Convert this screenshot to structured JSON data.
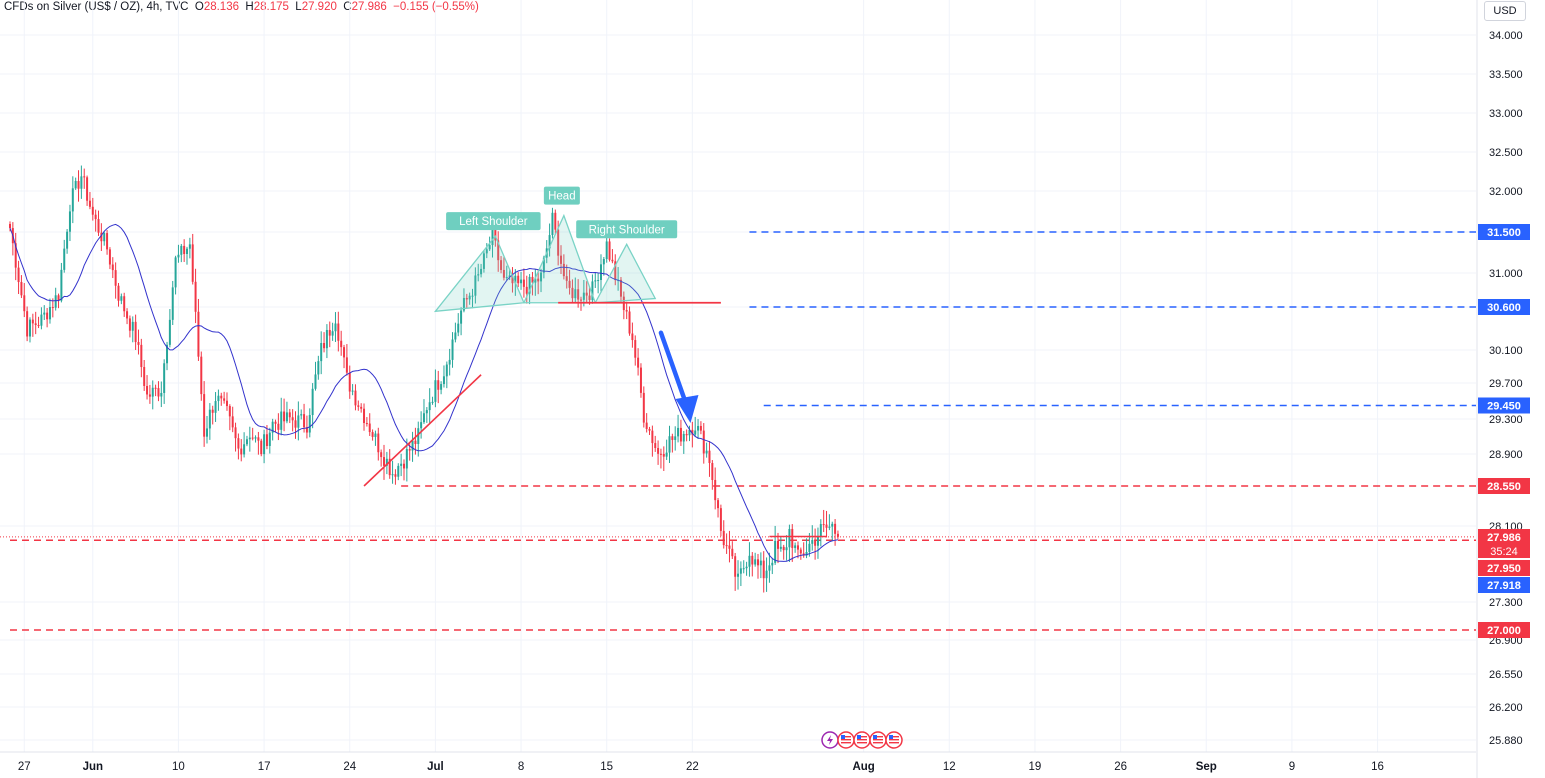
{
  "header": {
    "symbol": "CFDs on Silver (US$ / OZ), 4h, TVC",
    "o_label": "O",
    "o": "28.136",
    "h_label": "H",
    "h": "28.175",
    "l_label": "L",
    "l": "27.920",
    "c_label": "C",
    "c": "27.986",
    "change": "−0.155 (−0.55%)"
  },
  "currency": "USD",
  "colors": {
    "up": "#26a69a",
    "down": "#f23645",
    "ma": "#3333cc",
    "blue_level": "#2962ff",
    "red_level": "#f23645",
    "pattern": "#7ad3c6"
  },
  "chart_data": {
    "type": "candlestick",
    "timeframe": "4h",
    "y_axis": {
      "ticks": [
        34.0,
        33.5,
        33.0,
        32.5,
        32.0,
        31.5,
        31.0,
        30.6,
        30.1,
        29.7,
        29.3,
        28.9,
        28.1,
        27.3,
        26.9,
        26.55,
        26.2,
        25.88
      ],
      "tick_labels": [
        "34.000",
        "33.500",
        "33.000",
        "32.500",
        "32.000",
        "31.500",
        "31.000",
        "30.600",
        "30.100",
        "29.700",
        "29.300",
        "28.900",
        "28.100",
        "27.300",
        "26.900",
        "26.550",
        "26.200",
        "25.880"
      ]
    },
    "x_axis": {
      "tick_labels": [
        "27",
        "Jun",
        "10",
        "17",
        "24",
        "Jul",
        "8",
        "15",
        "22",
        "Aug",
        "12",
        "19",
        "26",
        "Sep",
        "9",
        "16"
      ],
      "tick_index": [
        5,
        29,
        59,
        89,
        119,
        149,
        179,
        209,
        239,
        299,
        329,
        359,
        389,
        419,
        449,
        479
      ]
    },
    "price_path": {
      "bar_index": [
        0,
        3,
        6,
        11,
        17,
        21,
        25,
        29,
        34,
        38,
        44,
        48,
        53,
        58,
        63,
        68,
        72,
        76,
        80,
        84,
        88,
        92,
        98,
        104,
        109,
        114,
        118,
        124,
        129,
        134,
        138,
        143,
        146,
        152,
        158,
        164,
        169,
        173,
        178,
        182,
        186,
        190,
        195,
        200,
        204,
        209,
        214,
        218,
        222,
        227,
        231,
        236,
        240,
        245,
        249,
        255,
        259,
        261,
        264,
        268,
        271,
        273,
        276,
        280,
        284,
        288,
        290
      ],
      "close": [
        31.55,
        30.95,
        30.35,
        30.45,
        30.75,
        31.85,
        32.2,
        31.7,
        31.3,
        30.75,
        30.25,
        29.55,
        29.65,
        31.15,
        31.35,
        29.15,
        29.55,
        29.35,
        28.95,
        29.15,
        28.95,
        29.25,
        29.3,
        29.25,
        30.1,
        30.5,
        29.75,
        29.35,
        29.0,
        28.7,
        28.85,
        29.1,
        29.45,
        29.85,
        30.55,
        30.95,
        31.45,
        30.9,
        30.85,
        30.85,
        30.95,
        31.65,
        30.8,
        30.75,
        30.8,
        31.35,
        30.7,
        30.25,
        29.35,
        28.9,
        29.05,
        29.15,
        29.25,
        28.85,
        28.05,
        27.5,
        27.85,
        27.7,
        27.6,
        27.85,
        27.8,
        28.05,
        27.75,
        27.9,
        28.05,
        28.1,
        27.986
      ]
    },
    "moving_average": "20-period",
    "last_price": 27.986,
    "levels": [
      {
        "value": 31.5,
        "label": "31.500",
        "style": "dashed",
        "color": "blue"
      },
      {
        "value": 30.6,
        "label": "30.600",
        "style": "dashed",
        "color": "blue"
      },
      {
        "value": 29.45,
        "label": "29.450",
        "style": "dashed",
        "color": "blue"
      },
      {
        "value": 28.55,
        "label": "28.550",
        "style": "dashed",
        "color": "red"
      },
      {
        "value": 27.95,
        "label": "27.950",
        "style": "dashed",
        "color": "red"
      },
      {
        "value": 27.0,
        "label": "27.000",
        "style": "dashed",
        "color": "red"
      }
    ],
    "price_tags": [
      {
        "value": 27.986,
        "label": "27.986",
        "countdown": "35:24",
        "color": "red"
      },
      {
        "value": 27.95,
        "label": "27.950",
        "color": "red"
      },
      {
        "value": 27.918,
        "label": "27.918",
        "color": "blue"
      }
    ],
    "annotations": [
      "Left Shoulder",
      "Head",
      "Right Shoulder"
    ],
    "neckline": 30.65,
    "head_and_shoulders_points": [
      {
        "bar_index": 149,
        "value": 30.55
      },
      {
        "bar_index": 170,
        "value": 31.45
      },
      {
        "bar_index": 180,
        "value": 30.65
      },
      {
        "bar_index": 194,
        "value": 31.7
      },
      {
        "bar_index": 205,
        "value": 30.65
      },
      {
        "bar_index": 216,
        "value": 31.35
      },
      {
        "bar_index": 226,
        "value": 30.7
      }
    ],
    "trendline_points": [
      {
        "bar_index": 124,
        "value": 28.55
      },
      {
        "bar_index": 165,
        "value": 29.8
      }
    ],
    "down_arrow_points": [
      {
        "bar_index": 228,
        "value": 30.3
      },
      {
        "bar_index": 238,
        "value": 29.3
      }
    ],
    "event_icon_count": 5
  }
}
